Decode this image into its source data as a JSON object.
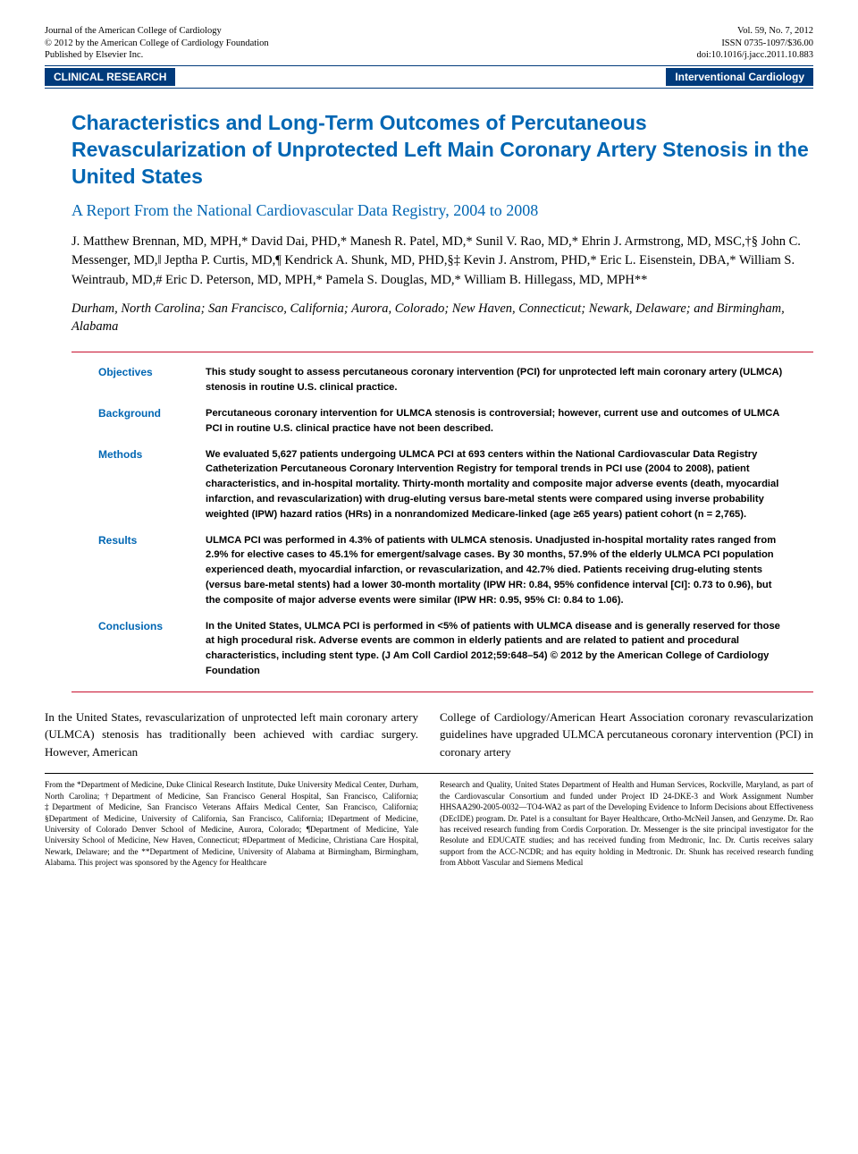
{
  "header": {
    "left": {
      "line1": "Journal of the American College of Cardiology",
      "line2": "© 2012 by the American College of Cardiology Foundation",
      "line3": "Published by Elsevier Inc."
    },
    "right": {
      "line1": "Vol. 59, No. 7, 2012",
      "line2": "ISSN 0735-1097/$36.00",
      "line3": "doi:10.1016/j.jacc.2011.10.883"
    }
  },
  "bars": {
    "left": "CLINICAL RESEARCH",
    "right": "Interventional Cardiology"
  },
  "title": "Characteristics and Long-Term Outcomes of Percutaneous Revascularization of Unprotected Left Main Coronary Artery Stenosis in the United States",
  "subtitle": "A Report From the National Cardiovascular Data Registry, 2004 to 2008",
  "authors": "J. Matthew Brennan, MD, MPH,* David Dai, PHD,* Manesh R. Patel, MD,* Sunil V. Rao, MD,* Ehrin J. Armstrong, MD, MSC,†§ John C. Messenger, MD,‖ Jeptha P. Curtis, MD,¶ Kendrick A. Shunk, MD, PHD,§‡ Kevin J. Anstrom, PHD,* Eric L. Eisenstein, DBA,* William S. Weintraub, MD,# Eric D. Peterson, MD, MPH,* Pamela S. Douglas, MD,* William B. Hillegass, MD, MPH**",
  "affiliations": "Durham, North Carolina; San Francisco, California; Aurora, Colorado; New Haven, Connecticut; Newark, Delaware; and Birmingham, Alabama",
  "abstract": {
    "objectives": {
      "label": "Objectives",
      "text": "This study sought to assess percutaneous coronary intervention (PCI) for unprotected left main coronary artery (ULMCA) stenosis in routine U.S. clinical practice."
    },
    "background": {
      "label": "Background",
      "text": "Percutaneous coronary intervention for ULMCA stenosis is controversial; however, current use and outcomes of ULMCA PCI in routine U.S. clinical practice have not been described."
    },
    "methods": {
      "label": "Methods",
      "text": "We evaluated 5,627 patients undergoing ULMCA PCI at 693 centers within the National Cardiovascular Data Registry Catheterization Percutaneous Coronary Intervention Registry for temporal trends in PCI use (2004 to 2008), patient characteristics, and in-hospital mortality. Thirty-month mortality and composite major adverse events (death, myocardial infarction, and revascularization) with drug-eluting versus bare-metal stents were compared using inverse probability weighted (IPW) hazard ratios (HRs) in a nonrandomized Medicare-linked (age ≥65 years) patient cohort (n = 2,765)."
    },
    "results": {
      "label": "Results",
      "text": "ULMCA PCI was performed in 4.3% of patients with ULMCA stenosis. Unadjusted in-hospital mortality rates ranged from 2.9% for elective cases to 45.1% for emergent/salvage cases. By 30 months, 57.9% of the elderly ULMCA PCI population experienced death, myocardial infarction, or revascularization, and 42.7% died. Patients receiving drug-eluting stents (versus bare-metal stents) had a lower 30-month mortality (IPW HR: 0.84, 95% confidence interval [CI]: 0.73 to 0.96), but the composite of major adverse events were similar (IPW HR: 0.95, 95% CI: 0.84 to 1.06)."
    },
    "conclusions": {
      "label": "Conclusions",
      "text": "In the United States, ULMCA PCI is performed in <5% of patients with ULMCA disease and is generally reserved for those at high procedural risk. Adverse events are common in elderly patients and are related to patient and procedural characteristics, including stent type.   (J Am Coll Cardiol 2012;59:648–54) © 2012 by the American College of Cardiology Foundation"
    }
  },
  "body": {
    "col1": "In the United States, revascularization of unprotected left main coronary artery (ULMCA) stenosis has traditionally been achieved with cardiac surgery. However, American",
    "col2": "College of Cardiology/American Heart Association coronary revascularization guidelines have upgraded ULMCA percutaneous coronary intervention (PCI) in coronary artery"
  },
  "footnotes": {
    "col1": "From the *Department of Medicine, Duke Clinical Research Institute, Duke University Medical Center, Durham, North Carolina; †Department of Medicine, San Francisco General Hospital, San Francisco, California; ‡Department of Medicine, San Francisco Veterans Affairs Medical Center, San Francisco, California; §Department of Medicine, University of California, San Francisco, California; ‖Department of Medicine, University of Colorado Denver School of Medicine, Aurora, Colorado; ¶Department of Medicine, Yale University School of Medicine, New Haven, Connecticut; #Department of Medicine, Christiana Care Hospital, Newark, Delaware; and the **Department of Medicine, University of Alabama at Birmingham, Birmingham, Alabama. This project was sponsored by the Agency for Healthcare",
    "col2": "Research and Quality, United States Department of Health and Human Services, Rockville, Maryland, as part of the Cardiovascular Consortium and funded under Project ID 24-DKE-3 and Work Assignment Number HHSAA290-2005-0032—TO4-WA2 as part of the Developing Evidence to Inform Decisions about Effectiveness (DEcIDE) program. Dr. Patel is a consultant for Bayer Healthcare, Ortho-McNeil Jansen, and Genzyme. Dr. Rao has received research funding from Cordis Corporation. Dr. Messenger is the site principal investigator for the Resolute and EDUCATE studies; and has received funding from Medtronic, Inc. Dr. Curtis receives salary support from the ACC-NCDR; and has equity holding in Medtronic. Dr. Shunk has received research funding from Abbott Vascular and Siemens Medical"
  }
}
